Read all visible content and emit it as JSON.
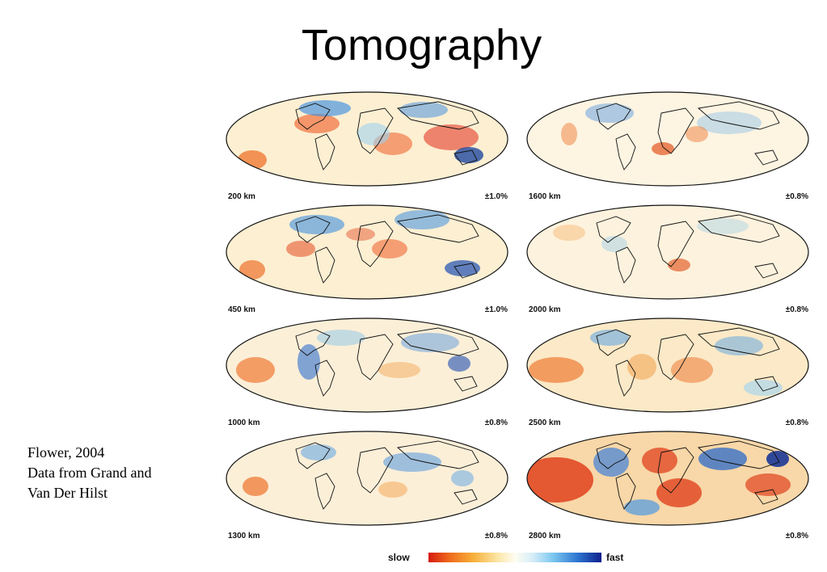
{
  "title": "Tomography",
  "caption": {
    "line1": "Flower, 2004",
    "line2": "Data from Grand and",
    "line3": "Van Der Hilst"
  },
  "panels": [
    {
      "depth": "200  km",
      "scale": "±1.0%"
    },
    {
      "depth": "1600  km",
      "scale": "±0.8%"
    },
    {
      "depth": "450  km",
      "scale": "±1.0%"
    },
    {
      "depth": "2000  km",
      "scale": "±0.8%"
    },
    {
      "depth": "1000  km",
      "scale": "±0.8%"
    },
    {
      "depth": "2500  km",
      "scale": "±0.8%"
    },
    {
      "depth": "1300  km",
      "scale": "±0.8%"
    },
    {
      "depth": "2800  km",
      "scale": "±0.8%"
    }
  ],
  "colorbar": {
    "slow_label": "slow",
    "fast_label": "fast"
  },
  "colors": {
    "slow": "#d61a10",
    "neutral": "#fffdf2",
    "fast": "#0e1f8d"
  }
}
